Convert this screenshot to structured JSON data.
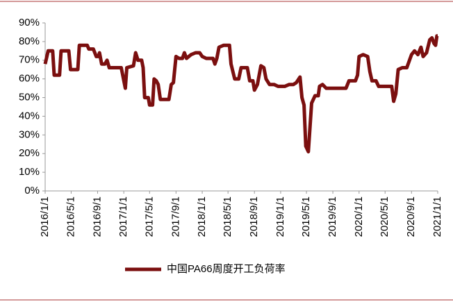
{
  "chart_data": {
    "type": "line",
    "x": [
      "2016/1/1",
      "2016/1/15",
      "2016/2/5",
      "2016/2/12",
      "2016/3/8",
      "2016/3/15",
      "2016/4/20",
      "2016/4/28",
      "2016/6/1",
      "2016/6/8",
      "2016/7/15",
      "2016/7/22",
      "2016/8/12",
      "2016/8/26",
      "2016/9/5",
      "2016/9/10",
      "2016/9/20",
      "2016/10/5",
      "2016/10/15",
      "2016/10/25",
      "2016/12/20",
      "2017/1/8",
      "2017/1/15",
      "2017/2/15",
      "2017/2/25",
      "2017/3/8",
      "2017/3/25",
      "2017/4/1",
      "2017/4/8",
      "2017/4/25",
      "2017/5/1",
      "2017/5/15",
      "2017/5/22",
      "2017/6/1",
      "2017/6/10",
      "2017/6/20",
      "2017/7/30",
      "2017/8/10",
      "2017/8/20",
      "2017/9/1",
      "2017/9/15",
      "2017/10/1",
      "2017/10/10",
      "2017/10/20",
      "2017/11/10",
      "2017/12/1",
      "2017/12/20",
      "2018/1/1",
      "2018/1/20",
      "2018/2/20",
      "2018/3/1",
      "2018/3/10",
      "2018/3/20",
      "2018/4/10",
      "2018/5/8",
      "2018/5/15",
      "2018/6/1",
      "2018/6/20",
      "2018/7/1",
      "2018/7/30",
      "2018/8/10",
      "2018/8/25",
      "2018/9/1",
      "2018/9/15",
      "2018/10/1",
      "2018/10/15",
      "2018/10/25",
      "2018/11/10",
      "2018/12/1",
      "2018/12/20",
      "2019/1/20",
      "2019/2/10",
      "2019/3/1",
      "2019/3/15",
      "2019/4/1",
      "2019/4/10",
      "2019/4/20",
      "2019/4/28",
      "2019/5/10",
      "2019/5/25",
      "2019/6/10",
      "2019/6/25",
      "2019/7/1",
      "2019/7/15",
      "2019/8/1",
      "2019/11/1",
      "2019/11/15",
      "2019/12/15",
      "2019/12/25",
      "2020/1/1",
      "2020/1/20",
      "2020/2/10",
      "2020/2/20",
      "2020/3/1",
      "2020/3/20",
      "2020/4/1",
      "2020/6/1",
      "2020/6/10",
      "2020/6/20",
      "2020/7/1",
      "2020/7/20",
      "2020/8/10",
      "2020/9/1",
      "2020/9/15",
      "2020/10/1",
      "2020/10/15",
      "2020/10/25",
      "2020/11/10",
      "2020/11/25",
      "2020/12/5",
      "2020/12/15",
      "2020/12/22",
      "2020/12/28",
      "2021/1/1"
    ],
    "series": [
      {
        "name": "中国PA66周度开工负荷率",
        "color": "#7b0f0f",
        "values": [
          68,
          75,
          75,
          62,
          62,
          75,
          75,
          65,
          65,
          78,
          78,
          76,
          76,
          72,
          72,
          74,
          68,
          68,
          70,
          66,
          66,
          55,
          66,
          67,
          74,
          70,
          70,
          66,
          50,
          50,
          46,
          46,
          60,
          59,
          57,
          49,
          49,
          57,
          58,
          72,
          71,
          71,
          74,
          71,
          73,
          74,
          74,
          72,
          71,
          71,
          68,
          71,
          77,
          78,
          78,
          68,
          60,
          60,
          66,
          66,
          59,
          59,
          54,
          57,
          67,
          66,
          60,
          57,
          57,
          56,
          56,
          57,
          57,
          58,
          61,
          50,
          46,
          24,
          21,
          47,
          51,
          51,
          56,
          57,
          55,
          55,
          59,
          59,
          62,
          72,
          73,
          72,
          64,
          59,
          59,
          56,
          56,
          48,
          52,
          65,
          66,
          66,
          73,
          75,
          73,
          77,
          72,
          74,
          81,
          82,
          79,
          78,
          83,
          83
        ]
      }
    ],
    "xticks": [
      "2016/1/1",
      "2016/5/1",
      "2016/9/1",
      "2017/1/1",
      "2017/5/1",
      "2017/9/1",
      "2018/1/1",
      "2018/5/1",
      "2018/9/1",
      "2019/1/1",
      "2019/5/1",
      "2019/9/1",
      "2020/1/1",
      "2020/5/1",
      "2020/9/1",
      "2021/1/1"
    ],
    "ylim": [
      0,
      90
    ],
    "yticks": [
      {
        "value": 0,
        "label": "0%"
      },
      {
        "value": 10,
        "label": "10%"
      },
      {
        "value": 20,
        "label": "20%"
      },
      {
        "value": 30,
        "label": "30%"
      },
      {
        "value": 40,
        "label": "40%"
      },
      {
        "value": 50,
        "label": "50%"
      },
      {
        "value": 60,
        "label": "60%"
      },
      {
        "value": 70,
        "label": "70%"
      },
      {
        "value": 80,
        "label": "80%"
      },
      {
        "value": 90,
        "label": "90%"
      }
    ],
    "grid": false,
    "legend": "bottom"
  }
}
